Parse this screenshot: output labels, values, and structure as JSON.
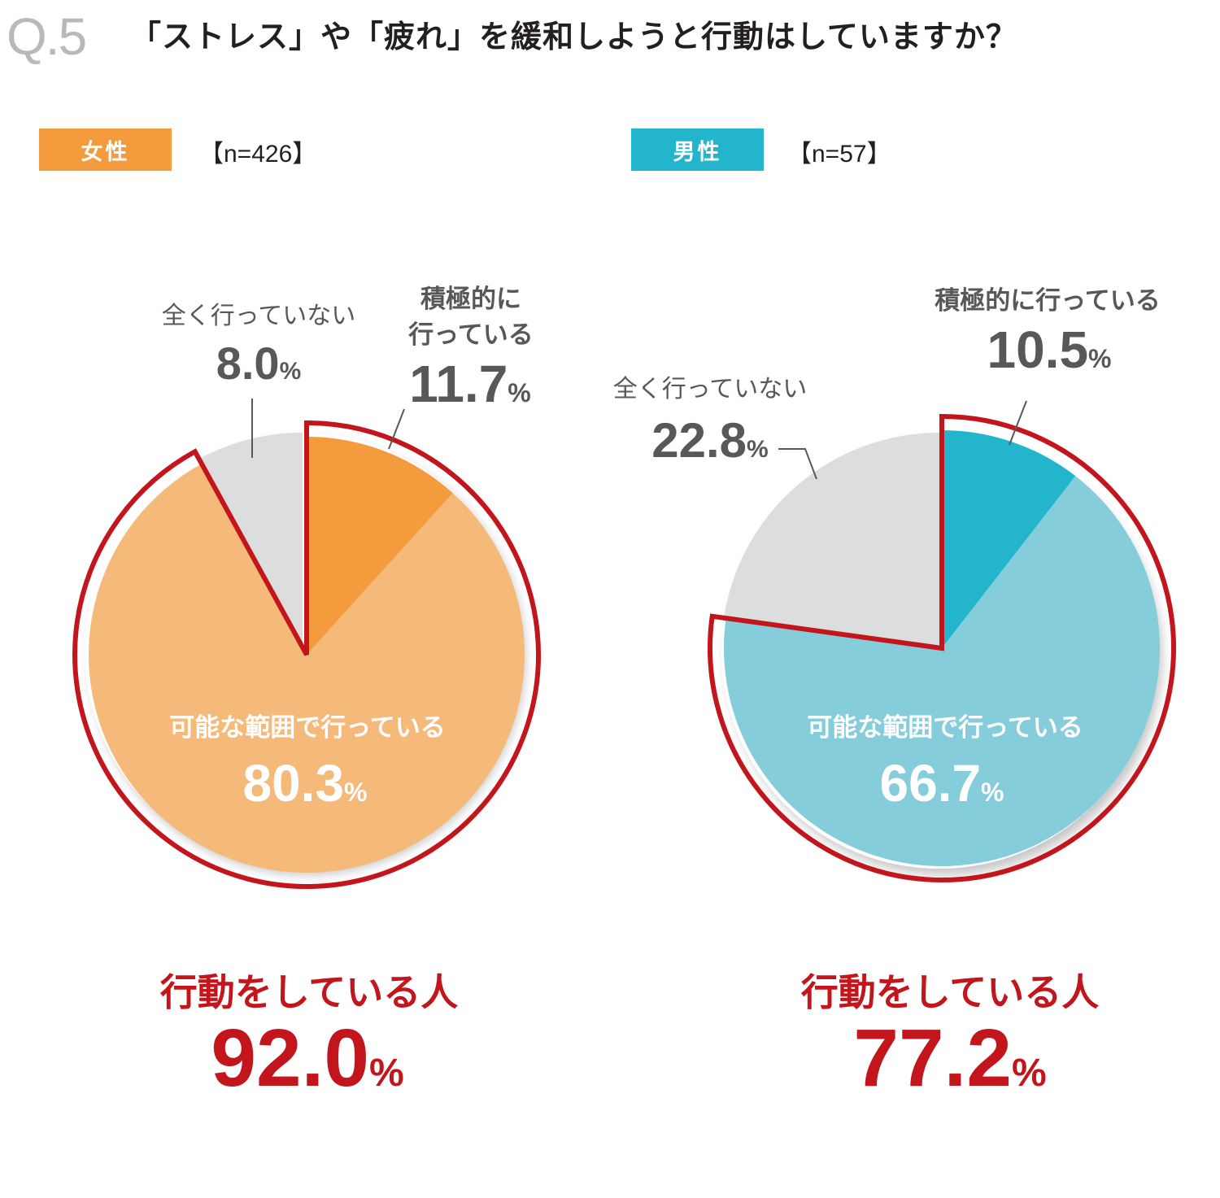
{
  "question": {
    "number": "Q.5",
    "text": "「ストレス」や「疲れ」を緩和しようと行動はしていますか？"
  },
  "colors": {
    "female_strong": "#f39b3d",
    "female_light": "#f5b97a",
    "male_strong": "#22b5cc",
    "male_light": "#86cddc",
    "none": "#dcdddd",
    "highlight": "#c3161c",
    "text_dark": "#595757"
  },
  "chart_data": [
    {
      "type": "pie",
      "group": "女性",
      "n": "【n=426】",
      "slices": [
        {
          "label": "積極的に行っている",
          "value": 11.7
        },
        {
          "label": "可能な範囲で行っている",
          "value": 80.3
        },
        {
          "label": "全く行っていない",
          "value": 8.0
        }
      ],
      "labels": {
        "active_line1": "積極的に",
        "active_line2": "行っている",
        "active_value": "11.7",
        "partial": "可能な範囲で行っている",
        "partial_value": "80.3",
        "none": "全く行っていない",
        "none_value": "8.0",
        "unit": "%"
      },
      "summary": {
        "label": "行動をしている人",
        "value": "92.0",
        "unit": "%"
      }
    },
    {
      "type": "pie",
      "group": "男性",
      "n": "【n=57】",
      "slices": [
        {
          "label": "積極的に行っている",
          "value": 10.5
        },
        {
          "label": "可能な範囲で行っている",
          "value": 66.7
        },
        {
          "label": "全く行っていない",
          "value": 22.8
        }
      ],
      "labels": {
        "active": "積極的に行っている",
        "active_value": "10.5",
        "partial": "可能な範囲で行っている",
        "partial_value": "66.7",
        "none": "全く行っていない",
        "none_value": "22.8",
        "unit": "%"
      },
      "summary": {
        "label": "行動をしている人",
        "value": "77.2",
        "unit": "%"
      }
    }
  ]
}
